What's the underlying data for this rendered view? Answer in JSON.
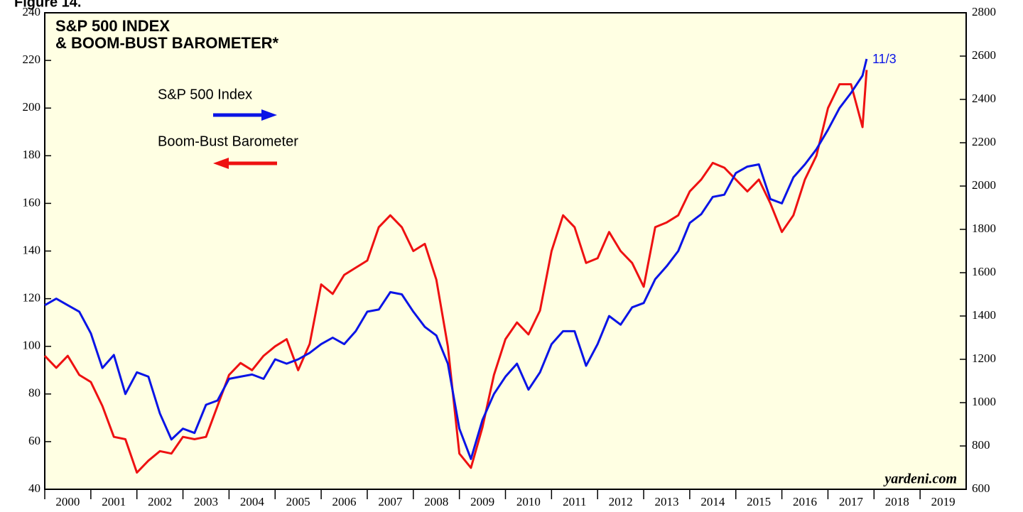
{
  "figure_label": "Figure 14.",
  "chart_data": {
    "type": "line",
    "title": [
      "S&P 500 INDEX",
      "& BOOM-BUST BAROMETER*"
    ],
    "annotations": {
      "last_date": "11/3",
      "source": "yardeni.com"
    },
    "xlim": [
      2000,
      2020
    ],
    "xticks": [
      {
        "value": 2000,
        "label": "2000"
      },
      {
        "value": 2001,
        "label": "2001"
      },
      {
        "value": 2002,
        "label": "2002"
      },
      {
        "value": 2003,
        "label": "2003"
      },
      {
        "value": 2004,
        "label": "2004"
      },
      {
        "value": 2005,
        "label": "2005"
      },
      {
        "value": 2006,
        "label": "2006"
      },
      {
        "value": 2007,
        "label": "2007"
      },
      {
        "value": 2008,
        "label": "2008"
      },
      {
        "value": 2009,
        "label": "2009"
      },
      {
        "value": 2010,
        "label": "2010"
      },
      {
        "value": 2011,
        "label": "2011"
      },
      {
        "value": 2012,
        "label": "2012"
      },
      {
        "value": 2013,
        "label": "2013"
      },
      {
        "value": 2014,
        "label": "2014"
      },
      {
        "value": 2015,
        "label": "2015"
      },
      {
        "value": 2016,
        "label": "2016"
      },
      {
        "value": 2017,
        "label": "2017"
      },
      {
        "value": 2018,
        "label": "2018"
      },
      {
        "value": 2019,
        "label": "2019"
      }
    ],
    "ylim": [
      40,
      240
    ],
    "yticks": [
      40,
      60,
      80,
      100,
      120,
      140,
      160,
      180,
      200,
      220,
      240
    ],
    "y2lim": [
      600,
      2800
    ],
    "y2ticks": [
      600,
      800,
      1000,
      1200,
      1400,
      1600,
      1800,
      2000,
      2200,
      2400,
      2600,
      2800
    ],
    "x": [
      2000,
      2000.25,
      2000.5,
      2000.75,
      2001,
      2001.25,
      2001.5,
      2001.75,
      2002,
      2002.25,
      2002.5,
      2002.75,
      2003,
      2003.25,
      2003.5,
      2003.75,
      2004,
      2004.25,
      2004.5,
      2004.75,
      2005,
      2005.25,
      2005.5,
      2005.75,
      2006,
      2006.25,
      2006.5,
      2006.75,
      2007,
      2007.25,
      2007.5,
      2007.75,
      2008,
      2008.25,
      2008.5,
      2008.75,
      2009,
      2009.25,
      2009.5,
      2009.75,
      2010,
      2010.25,
      2010.5,
      2010.75,
      2011,
      2011.25,
      2011.5,
      2011.75,
      2012,
      2012.25,
      2012.5,
      2012.75,
      2013,
      2013.25,
      2013.5,
      2013.75,
      2014,
      2014.25,
      2014.5,
      2014.75,
      2015,
      2015.25,
      2015.5,
      2015.75,
      2016,
      2016.25,
      2016.5,
      2016.75,
      2017,
      2017.25,
      2017.5,
      2017.75,
      2017.84
    ],
    "series": [
      {
        "name": "Boom-Bust Barometer",
        "color": "#ee1111",
        "axis": "y",
        "values": [
          96,
          91,
          96,
          88,
          85,
          75,
          62,
          61,
          47,
          52,
          56,
          55,
          62,
          61,
          62,
          75,
          88,
          93,
          90,
          96,
          100,
          103,
          90,
          101,
          126,
          122,
          130,
          133,
          136,
          150,
          155,
          150,
          140,
          143,
          128,
          100,
          55,
          49,
          66,
          88,
          103,
          110,
          105,
          115,
          140,
          155,
          150,
          135,
          137,
          148,
          140,
          135,
          125,
          150,
          152,
          155,
          165,
          170,
          177,
          175,
          170,
          165,
          170,
          160,
          148,
          155,
          170,
          180,
          200,
          210,
          210,
          192,
          216
        ]
      },
      {
        "name": "S&P 500 Index",
        "color": "#0a14e6",
        "axis": "y2",
        "values": [
          1450,
          1480,
          1450,
          1420,
          1320,
          1160,
          1220,
          1040,
          1140,
          1120,
          950,
          830,
          880,
          860,
          990,
          1010,
          1110,
          1120,
          1130,
          1110,
          1200,
          1180,
          1200,
          1230,
          1270,
          1300,
          1270,
          1330,
          1420,
          1430,
          1510,
          1500,
          1420,
          1350,
          1310,
          1180,
          880,
          740,
          920,
          1040,
          1120,
          1180,
          1060,
          1140,
          1270,
          1330,
          1330,
          1170,
          1270,
          1400,
          1360,
          1440,
          1460,
          1570,
          1630,
          1700,
          1830,
          1870,
          1950,
          1960,
          2060,
          2090,
          2100,
          1940,
          1920,
          2040,
          2100,
          2170,
          2260,
          2360,
          2430,
          2510,
          2587
        ]
      }
    ]
  }
}
